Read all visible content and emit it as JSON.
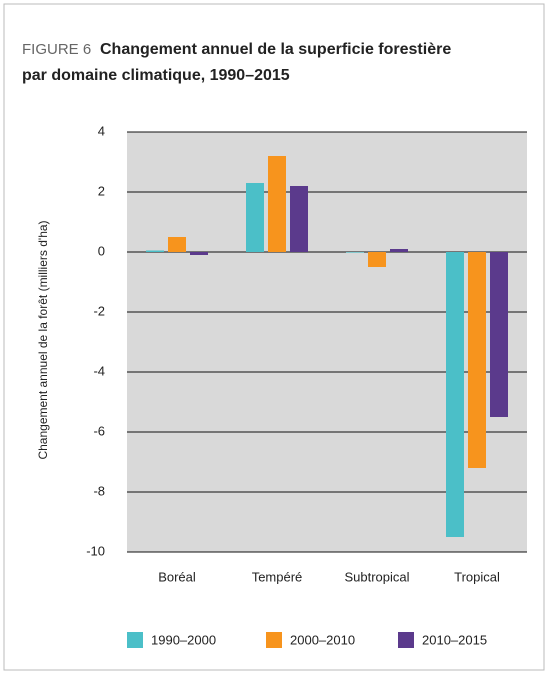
{
  "chart_data": {
    "type": "bar",
    "figure_label": "FIGURE 6",
    "title": "Changement annuel de la superficie forestière",
    "title_line2": "par domaine climatique, 1990–2015",
    "y_label": "Changement annuel de la forêt (milliers d'ha)",
    "categories": [
      "Boréal",
      "Tempéré",
      "Subtropical",
      "Tropical"
    ],
    "series": [
      {
        "name": "1990–2000",
        "color": "#4bbfc8",
        "values": [
          0.05,
          2.3,
          -0.02,
          -9.5
        ]
      },
      {
        "name": "2000–2010",
        "color": "#f7941d",
        "values": [
          0.5,
          3.2,
          -0.5,
          -7.2
        ]
      },
      {
        "name": "2010–2015",
        "color": "#5b3a8c",
        "values": [
          -0.1,
          2.2,
          0.1,
          -5.5
        ]
      }
    ],
    "ylim": [
      -10,
      4
    ],
    "yticks": [
      -10,
      -8,
      -6,
      -4,
      -2,
      0,
      2,
      4
    ],
    "grid": true
  }
}
